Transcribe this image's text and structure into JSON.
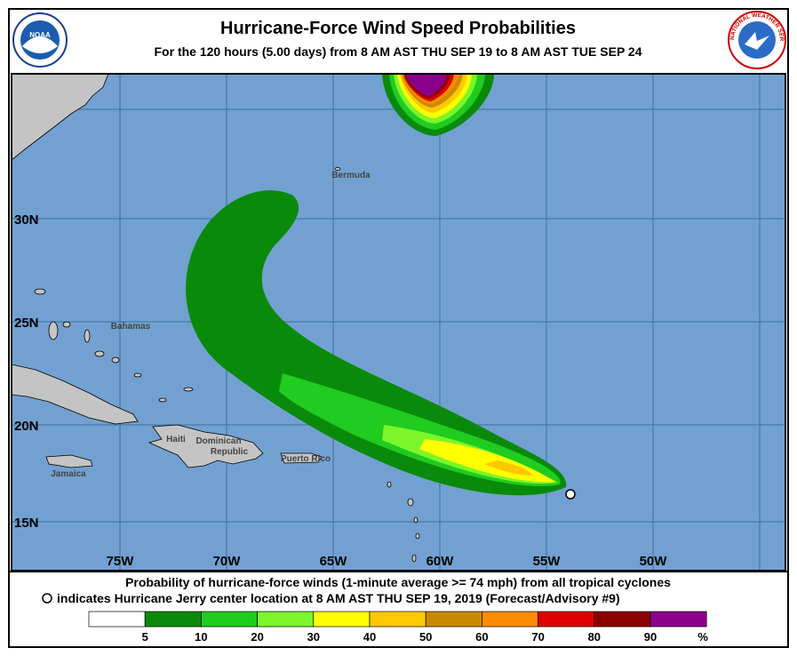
{
  "header": {
    "title": "Hurricane-Force Wind Speed Probabilities",
    "subtitle": "For the 120 hours (5.00 days) from 8 AM AST THU SEP 19 to 8 AM AST TUE SEP 24",
    "noaa_logo": "NOAA",
    "nws_logo": "NATIONAL WEATHER SERVICE"
  },
  "map": {
    "lat_labels": [
      "30N",
      "25N",
      "20N",
      "15N"
    ],
    "lon_labels": [
      "75W",
      "70W",
      "65W",
      "60W",
      "55W",
      "50W"
    ],
    "places": [
      "Bermuda",
      "Bahamas",
      "Haiti",
      "Dominican",
      "Republic",
      "Puerto Rico",
      "Jamaica"
    ]
  },
  "footer": {
    "line1": "Probability of hurricane-force winds (1-minute average >= 74 mph) from all tropical cyclones",
    "line2": "indicates Hurricane Jerry center location at 8 AM AST THU SEP 19, 2019 (Forecast/Advisory #9)"
  },
  "legend": {
    "colors": [
      "#ffffff",
      "#0a8a0a",
      "#1fcc1f",
      "#7cf52a",
      "#ffff00",
      "#ffc800",
      "#c98a00",
      "#ff8c00",
      "#e00000",
      "#8b0000",
      "#8b008b"
    ],
    "labels": [
      5,
      10,
      20,
      30,
      40,
      50,
      60,
      70,
      80,
      90
    ],
    "unit": "%"
  }
}
